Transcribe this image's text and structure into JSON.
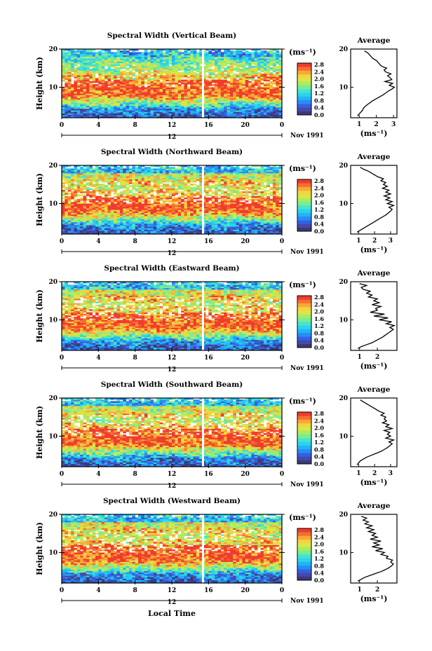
{
  "figure": {
    "x_axis_label": "Local Time",
    "date_label": "Nov 1991",
    "day_label": "12",
    "y_axis_label": "Height (km)",
    "colorbar_unit": "(ms⁻¹)",
    "average_title": "Average",
    "average_xlabel": "(ms⁻¹)"
  },
  "colorscale": [
    "#3a3a78",
    "#4848a8",
    "#2f62e8",
    "#2a8cf2",
    "#22b4f4",
    "#28d4f0",
    "#48e4c8",
    "#78ec98",
    "#a8ec60",
    "#d8e848",
    "#f4d43c",
    "#f8a838",
    "#f47030",
    "#f03c2c"
  ],
  "chart_data": [
    {
      "type": "heatmap",
      "title": "Spectral Width (Vertical Beam)",
      "xlabel": "Local Time",
      "ylabel": "Height (km)",
      "xticks": [
        "0",
        "4",
        "8",
        "12",
        "16",
        "20",
        "0"
      ],
      "xlim": [
        0,
        24
      ],
      "ylim": [
        2,
        20
      ],
      "yticks": [
        "10",
        "20"
      ],
      "colorbar_ticks": [
        "2.8",
        "2.4",
        "2.0",
        "1.6",
        "1.2",
        "0.8",
        "0.4",
        "0.0"
      ],
      "colorbar_range": [
        0.0,
        2.8
      ],
      "data_gap_hour": 15.4,
      "profile": {
        "title": "Average",
        "xticks": [
          "1",
          "2",
          "3"
        ],
        "xlim": [
          0.5,
          3.2
        ],
        "height_km": [
          2.5,
          3,
          3.5,
          4,
          4.5,
          5,
          5.5,
          6,
          6.5,
          7,
          7.5,
          8,
          8.5,
          9,
          9.5,
          10,
          10.5,
          11,
          11.5,
          12,
          12.5,
          13,
          13.5,
          14,
          14.5,
          15,
          15.5,
          16,
          16.5,
          17,
          17.5,
          18,
          18.5,
          19,
          19.5
        ],
        "width_ms": [
          0.9,
          1.0,
          1.1,
          1.2,
          1.25,
          1.35,
          1.5,
          1.65,
          1.8,
          2.0,
          2.2,
          2.4,
          2.55,
          2.7,
          2.9,
          3.05,
          2.75,
          2.95,
          2.5,
          2.9,
          2.8,
          2.65,
          2.85,
          2.55,
          2.45,
          2.6,
          2.3,
          2.2,
          2.1,
          2.0,
          1.8,
          1.7,
          1.6,
          1.5,
          1.3
        ]
      }
    },
    {
      "type": "heatmap",
      "title": "Spectral Width (Northward Beam)",
      "xlabel": "Local Time",
      "ylabel": "Height (km)",
      "xticks": [
        "0",
        "4",
        "8",
        "12",
        "16",
        "20",
        "0"
      ],
      "xlim": [
        0,
        24
      ],
      "ylim": [
        2,
        20
      ],
      "yticks": [
        "10",
        "20"
      ],
      "colorbar_ticks": [
        "2.8",
        "2.4",
        "2.0",
        "1.6",
        "1.2",
        "0.8",
        "0.4",
        "0.0"
      ],
      "colorbar_range": [
        0.0,
        2.8
      ],
      "data_gap_hour": 15.4,
      "profile": {
        "title": "Average",
        "xticks": [
          "1",
          "2",
          "3"
        ],
        "xlim": [
          0.5,
          3.4
        ],
        "height_km": [
          2.5,
          3,
          3.5,
          4,
          4.5,
          5,
          5.5,
          6,
          6.5,
          7,
          7.5,
          8,
          8.5,
          9,
          9.5,
          10,
          10.5,
          11,
          11.5,
          12,
          12.5,
          13,
          13.5,
          14,
          14.5,
          15,
          15.5,
          16,
          16.5,
          17,
          17.5,
          18,
          18.5,
          19,
          19.5
        ],
        "width_ms": [
          0.9,
          1.1,
          1.3,
          1.5,
          1.7,
          1.9,
          2.1,
          2.3,
          2.5,
          2.7,
          2.85,
          3.0,
          3.1,
          2.9,
          3.2,
          2.8,
          3.1,
          2.7,
          2.95,
          2.6,
          3.0,
          2.7,
          2.9,
          2.5,
          2.8,
          2.55,
          2.7,
          2.4,
          2.55,
          2.2,
          2.0,
          1.8,
          1.6,
          1.3,
          1.1
        ]
      }
    },
    {
      "type": "heatmap",
      "title": "Spectral Width (Eastward Beam)",
      "xlabel": "Local Time",
      "ylabel": "Height (km)",
      "xticks": [
        "0",
        "4",
        "8",
        "12",
        "16",
        "20",
        "0"
      ],
      "xlim": [
        0,
        24
      ],
      "ylim": [
        2,
        20
      ],
      "yticks": [
        "10",
        "20"
      ],
      "colorbar_ticks": [
        "2.8",
        "2.4",
        "2.0",
        "1.6",
        "1.2",
        "0.8",
        "0.4",
        "0.0"
      ],
      "colorbar_range": [
        0.0,
        2.8
      ],
      "data_gap_hour": 15.4,
      "profile": {
        "title": "Average",
        "xticks": [
          "1",
          "2"
        ],
        "xlim": [
          0.5,
          3.1
        ],
        "height_km": [
          2.5,
          3,
          3.5,
          4,
          4.5,
          5,
          5.5,
          6,
          6.5,
          7,
          7.5,
          8,
          8.5,
          9,
          9.5,
          10,
          10.5,
          11,
          11.5,
          12,
          12.5,
          13,
          13.5,
          14,
          14.5,
          15,
          15.5,
          16,
          16.5,
          17,
          17.5,
          18,
          18.5,
          19,
          19.5
        ],
        "width_ms": [
          0.9,
          1.1,
          1.4,
          1.7,
          1.9,
          2.1,
          2.3,
          2.45,
          2.6,
          2.75,
          2.9,
          2.7,
          2.95,
          2.5,
          2.8,
          2.1,
          2.6,
          1.8,
          2.4,
          1.6,
          2.0,
          1.9,
          2.2,
          1.7,
          2.1,
          1.8,
          2.0,
          1.5,
          1.7,
          1.4,
          1.6,
          1.2,
          1.1,
          1.4,
          1.0
        ]
      }
    },
    {
      "type": "heatmap",
      "title": "Spectral Width (Southward Beam)",
      "xlabel": "Local Time",
      "ylabel": "Height (km)",
      "xticks": [
        "0",
        "4",
        "8",
        "12",
        "16",
        "20",
        "0"
      ],
      "xlim": [
        0,
        24
      ],
      "ylim": [
        2,
        20
      ],
      "yticks": [
        "10",
        "20"
      ],
      "colorbar_ticks": [
        "2.8",
        "2.4",
        "2.0",
        "1.6",
        "1.2",
        "0.8",
        "0.4",
        "0.0"
      ],
      "colorbar_range": [
        0.0,
        2.8
      ],
      "data_gap_hour": 15.4,
      "profile": {
        "title": "Average",
        "xticks": [
          "1",
          "2",
          "3"
        ],
        "xlim": [
          0.5,
          3.4
        ],
        "height_km": [
          2.5,
          3,
          3.5,
          4,
          4.5,
          5,
          5.5,
          6,
          6.5,
          7,
          7.5,
          8,
          8.5,
          9,
          9.5,
          10,
          10.5,
          11,
          11.5,
          12,
          12.5,
          13,
          13.5,
          14,
          14.5,
          15,
          15.5,
          16,
          16.5,
          17,
          17.5,
          18,
          18.5,
          19,
          19.5
        ],
        "width_ms": [
          0.9,
          1.0,
          1.1,
          1.3,
          1.5,
          1.8,
          2.1,
          2.4,
          2.6,
          2.8,
          2.95,
          3.1,
          2.9,
          3.2,
          2.7,
          3.0,
          2.8,
          2.95,
          2.6,
          3.1,
          2.7,
          2.9,
          2.5,
          2.75,
          2.6,
          2.7,
          2.4,
          2.6,
          2.3,
          2.1,
          1.9,
          1.7,
          1.5,
          1.3,
          1.1
        ]
      }
    },
    {
      "type": "heatmap",
      "title": "Spectral Width (Westward Beam)",
      "xlabel": "Local Time",
      "ylabel": "Height (km)",
      "xticks": [
        "0",
        "4",
        "8",
        "12",
        "16",
        "20",
        "0"
      ],
      "xlim": [
        0,
        24
      ],
      "ylim": [
        2,
        20
      ],
      "yticks": [
        "10",
        "20"
      ],
      "colorbar_ticks": [
        "2.8",
        "2.4",
        "2.0",
        "1.6",
        "1.2",
        "0.8",
        "0.4",
        "0.0"
      ],
      "colorbar_range": [
        0.0,
        2.8
      ],
      "data_gap_hour": 15.4,
      "profile": {
        "title": "Average",
        "xticks": [
          "1",
          "2"
        ],
        "xlim": [
          0.5,
          3.1
        ],
        "height_km": [
          2.5,
          3,
          3.5,
          4,
          4.5,
          5,
          5.5,
          6,
          6.5,
          7,
          7.5,
          8,
          8.5,
          9,
          9.5,
          10,
          10.5,
          11,
          11.5,
          12,
          12.5,
          13,
          13.5,
          14,
          14.5,
          15,
          15.5,
          16,
          16.5,
          17,
          17.5,
          18,
          18.5,
          19,
          19.5
        ],
        "width_ms": [
          0.9,
          1.1,
          1.3,
          1.6,
          1.9,
          2.2,
          2.45,
          2.65,
          2.8,
          2.9,
          2.75,
          2.85,
          2.5,
          2.6,
          2.2,
          2.4,
          1.9,
          2.3,
          1.7,
          2.1,
          1.8,
          2.2,
          1.6,
          2.0,
          1.7,
          1.9,
          1.5,
          1.8,
          1.4,
          1.7,
          1.3,
          1.5,
          1.2,
          1.4,
          1.1
        ]
      }
    }
  ]
}
